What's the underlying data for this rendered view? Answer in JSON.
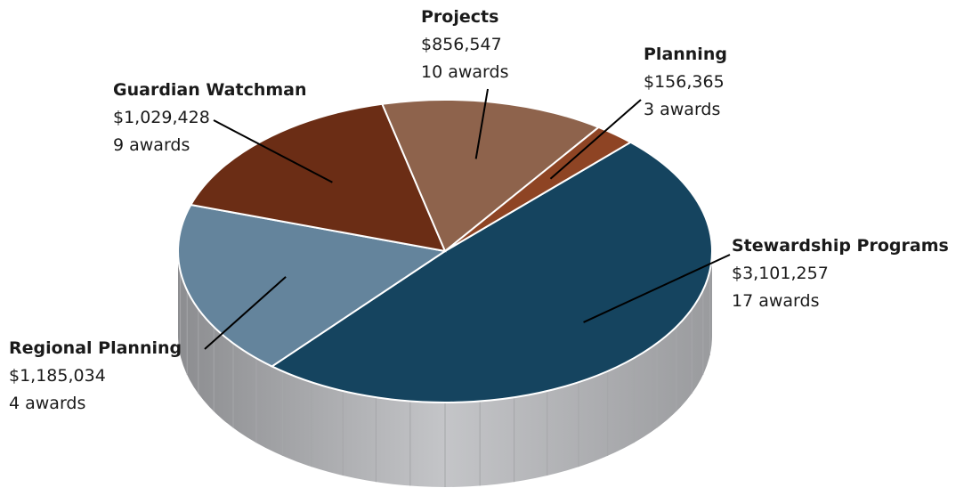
{
  "chart_data": {
    "type": "pie",
    "categories": [
      "Stewardship Programs",
      "Regional Planning",
      "Guardian Watchman",
      "Projects",
      "Planning"
    ],
    "values": [
      3101257,
      1185034,
      1029428,
      856547,
      156365
    ],
    "value_labels": [
      "$3,101,257",
      "$1,185,034",
      "$1,029,428",
      "$856,547",
      "$156,365"
    ],
    "award_labels": [
      "17 awards",
      "4 awards",
      "9 awards",
      "10 awards",
      "3 awards"
    ],
    "colors": [
      "#15445f",
      "#64849c",
      "#6b2d15",
      "#8e634c",
      "#8e4424"
    ]
  }
}
